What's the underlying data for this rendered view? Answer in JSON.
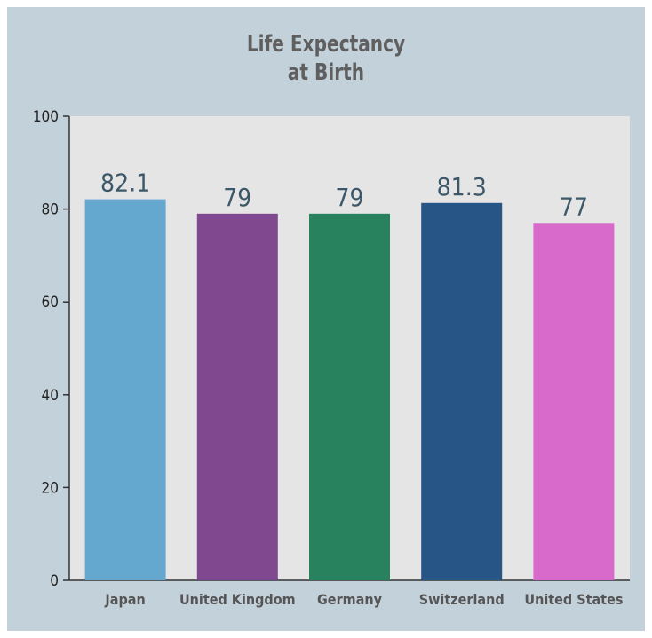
{
  "chart_data": {
    "type": "bar",
    "title_lines": [
      "Life Expectancy",
      "at Birth"
    ],
    "categories": [
      "Japan",
      "United Kingdom",
      "Germany",
      "Switzerland",
      "United States"
    ],
    "values": [
      82.1,
      79,
      79,
      81.3,
      77
    ],
    "value_labels": [
      "82.1",
      "79",
      "79",
      "81.3",
      "77"
    ],
    "colors": [
      "#64a8cf",
      "#80488e",
      "#28825e",
      "#265586",
      "#d76acb"
    ],
    "ylim": [
      0,
      100
    ],
    "yticks": [
      0,
      20,
      40,
      60,
      80,
      100
    ],
    "grid": false
  }
}
